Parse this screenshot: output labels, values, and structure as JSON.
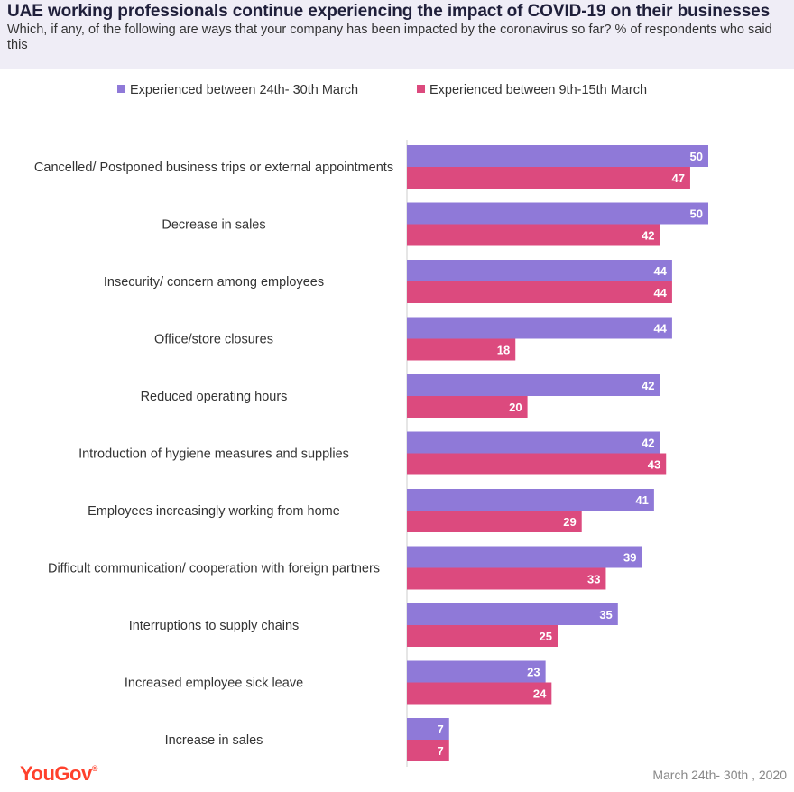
{
  "header": {
    "title": "UAE working professionals continue experiencing the impact of COVID-19 on their businesses",
    "subtitle": "Which, if any, of the following are ways that your company has been impacted by the coronavirus so far? % of respondents who said this"
  },
  "footer": {
    "brand": "YouGov",
    "date": "March 24th- 30th , 2020"
  },
  "colors": {
    "series1": "#8f79d8",
    "series2": "#dc4a7e",
    "header_bg": "#efedf6"
  },
  "chart_data": {
    "type": "bar",
    "orientation": "horizontal",
    "title": "UAE working professionals continue experiencing the impact of COVID-19 on their businesses",
    "subtitle": "Which, if any, of the following are ways that your company has been impacted by the coronavirus so far? % of respondents who said this",
    "xlabel": "",
    "ylabel": "",
    "xlim": [
      0,
      55
    ],
    "grid": false,
    "legend_position": "top",
    "categories": [
      "Cancelled/ Postponed business trips or external appointments",
      "Decrease in sales",
      "Insecurity/ concern among employees",
      "Office/store closures",
      "Reduced operating hours",
      "Introduction of hygiene measures and supplies",
      "Employees increasingly working from home",
      "Difficult communication/ cooperation with foreign partners",
      "Interruptions to supply chains",
      "Increased employee sick leave",
      "Increase in sales"
    ],
    "series": [
      {
        "name": "Experienced between 24th- 30th March",
        "color": "#8f79d8",
        "values": [
          50,
          50,
          44,
          44,
          42,
          42,
          41,
          39,
          35,
          23,
          7
        ]
      },
      {
        "name": "Experienced between 9th-15th March",
        "color": "#dc4a7e",
        "values": [
          47,
          42,
          44,
          18,
          20,
          43,
          29,
          33,
          25,
          24,
          7
        ]
      }
    ]
  }
}
